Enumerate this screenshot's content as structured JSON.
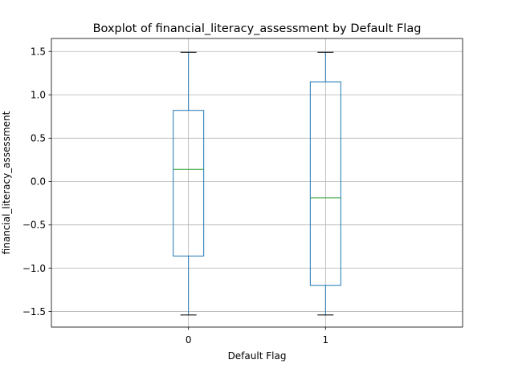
{
  "chart_data": {
    "type": "box",
    "title": "Boxplot of financial_literacy_assessment by Default Flag",
    "xlabel": "Default Flag",
    "ylabel": "financial_literacy_assessment",
    "ylim": [
      -1.68,
      1.65
    ],
    "yticks": [
      -1.5,
      -1.0,
      -0.5,
      0.0,
      0.5,
      1.0,
      1.5
    ],
    "ytick_labels": [
      "−1.5",
      "−1.0",
      "−0.5",
      "0.0",
      "0.5",
      "1.0",
      "1.5"
    ],
    "categories": [
      "0",
      "1"
    ],
    "grid": true,
    "boxes": [
      {
        "category": "0",
        "whisker_low": -1.54,
        "q1": -0.86,
        "median": 0.14,
        "q3": 0.82,
        "whisker_high": 1.49
      },
      {
        "category": "1",
        "whisker_low": -1.54,
        "q1": -1.2,
        "median": -0.19,
        "q3": 1.15,
        "whisker_high": 1.49
      }
    ],
    "colors": {
      "box": "#1f77b4",
      "median": "#2ca02c",
      "grid": "#b0b0b0",
      "axes": "#000000"
    }
  }
}
